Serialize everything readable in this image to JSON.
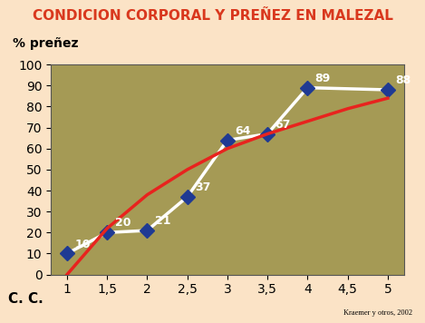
{
  "chart_data": {
    "type": "line",
    "title": "CONDICION CORPORAL Y PREÑEZ EN MALEZAL",
    "y_label": "% preñez",
    "x_label": "C. C.",
    "source": "Kraemer y otros, 2002",
    "series": [
      {
        "type": "line",
        "color": "#ffffff",
        "marker": "diamond",
        "marker_color": "#1f3a93",
        "line_style": "solid",
        "data_labels": true,
        "x": [
          1,
          1.5,
          2,
          2.5,
          3,
          3.5,
          4,
          5
        ],
        "values": [
          10,
          20,
          21,
          37,
          64,
          67,
          89,
          88
        ]
      },
      {
        "type": "line",
        "color": "#e8231e",
        "marker": "none",
        "line_style": "solid",
        "data_labels": false,
        "x": [
          1,
          1.5,
          2,
          2.5,
          3,
          3.5,
          4,
          4.5,
          5
        ],
        "values": [
          0,
          22,
          38,
          50,
          60,
          67,
          73,
          79,
          84
        ]
      }
    ],
    "xlim": [
      0.8,
      5.2
    ],
    "xticks": [
      1,
      {
        "value": 1.5,
        "label": "1,5"
      },
      2,
      {
        "value": 2.5,
        "label": "2,5"
      },
      3,
      {
        "value": 3.5,
        "label": "3,5"
      },
      4,
      {
        "value": 4.5,
        "label": "4,5"
      },
      5
    ],
    "ylim": [
      0,
      100
    ],
    "yticks": [
      0,
      10,
      20,
      30,
      40,
      50,
      60,
      70,
      80,
      90,
      100
    ],
    "grid": false
  }
}
